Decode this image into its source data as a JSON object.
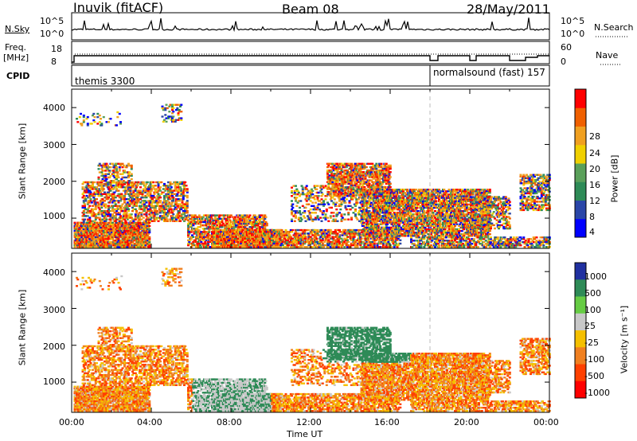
{
  "header": {
    "station": "Inuvik (fitACF)",
    "beam": "Beam 08",
    "date": "28/May/2011"
  },
  "nsky": {
    "label": "N.Sky",
    "tick_top": "10^5",
    "tick_bottom": "10^0",
    "right_label": "N.Search",
    "right_tick_top": "10^5",
    "right_tick_bottom": "10^0"
  },
  "freq": {
    "label": "Freq.",
    "unit": "[MHz]",
    "tick_top": "18",
    "tick_bottom": "8",
    "right_label": "Nave",
    "right_tick_top": "60",
    "right_tick_bottom": "0"
  },
  "cpid": {
    "label": "CPID",
    "mode1": "themis 3300",
    "mode2": "normalsound (fast) 157"
  },
  "colors": {
    "power": [
      "#0000ff",
      "#2a46a8",
      "#2e8b57",
      "#5aa05a",
      "#f0d000",
      "#f0a020",
      "#f06000",
      "#ff0000"
    ],
    "velocity": [
      "#2030a0",
      "#2e8b57",
      "#66cc44",
      "#c8c8c8",
      "#f5c000",
      "#f08020",
      "#ff4000",
      "#ff0000"
    ]
  },
  "chart_data": [
    {
      "type": "heatmap",
      "panel": "power",
      "ylabel": "Slant Range [km]",
      "xlabel": "Time UT",
      "x_ticks": [
        "00:00",
        "04:00",
        "08:00",
        "12:00",
        "16:00",
        "20:00",
        "00:00"
      ],
      "y_ticks": [
        "1000",
        "2000",
        "3000",
        "4000"
      ],
      "ylim": [
        180,
        4500
      ],
      "colorbar_label": "Power [dB]",
      "colorbar_ticks": [
        "4",
        "8",
        "12",
        "16",
        "20",
        "24",
        "28"
      ],
      "mode_change_time": "18:00"
    },
    {
      "type": "heatmap",
      "panel": "velocity",
      "ylabel": "Slant Range [km]",
      "xlabel": "Time UT",
      "x_ticks": [
        "00:00",
        "04:00",
        "08:00",
        "12:00",
        "16:00",
        "20:00",
        "00:00"
      ],
      "y_ticks": [
        "1000",
        "2000",
        "3000",
        "4000"
      ],
      "ylim": [
        180,
        4500
      ],
      "colorbar_label": "Velocity [m s⁻¹]",
      "colorbar_ticks": [
        "1000",
        "500",
        "100",
        "25",
        "-25",
        "-100",
        "-500",
        "-1000"
      ],
      "mode_change_time": "18:00"
    }
  ]
}
